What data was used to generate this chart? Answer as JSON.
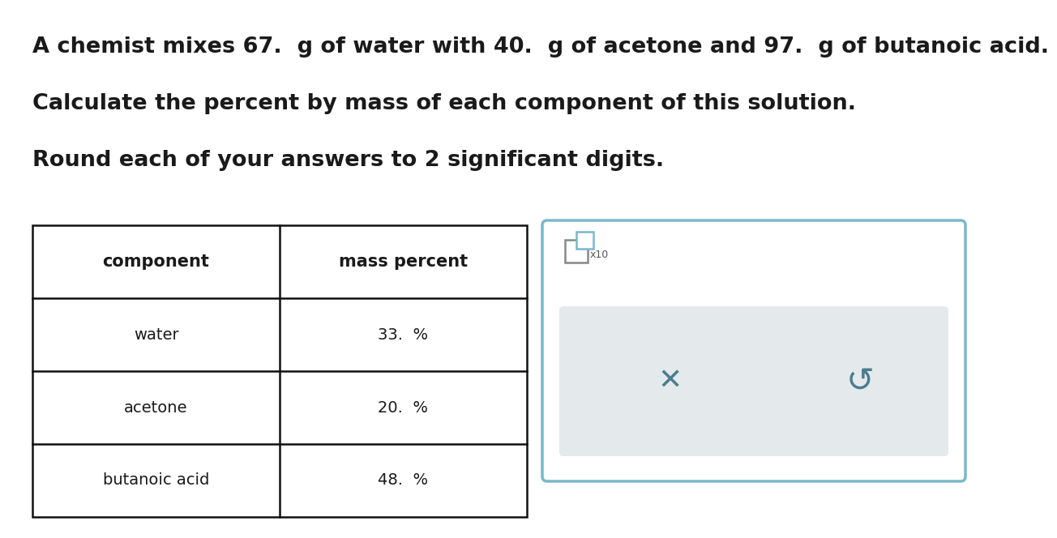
{
  "line1": "A chemist mixes 67.  g of water with 40.  g of acetone and 97.  g of butanoic acid.",
  "line2": "Calculate the percent by mass of each component of this solution.",
  "line3": "Round each of your answers to 2 significant digits.",
  "table_headers": [
    "component",
    "mass percent"
  ],
  "table_rows": [
    [
      "water",
      "33.  %"
    ],
    [
      "acetone",
      "20.  %"
    ],
    [
      "butanoic acid",
      "48.  %"
    ]
  ],
  "bg_color": "#ffffff",
  "text_color": "#1a1a1a",
  "table_border_color": "#111111",
  "panel_border_color": "#7ab8cc",
  "symbol_color": "#4a7d8e",
  "checkbox_gray": "#888888",
  "inner_panel_bg": "#e4e9eb",
  "font_size_main": 19.5,
  "font_size_header": 15,
  "font_size_body": 14
}
